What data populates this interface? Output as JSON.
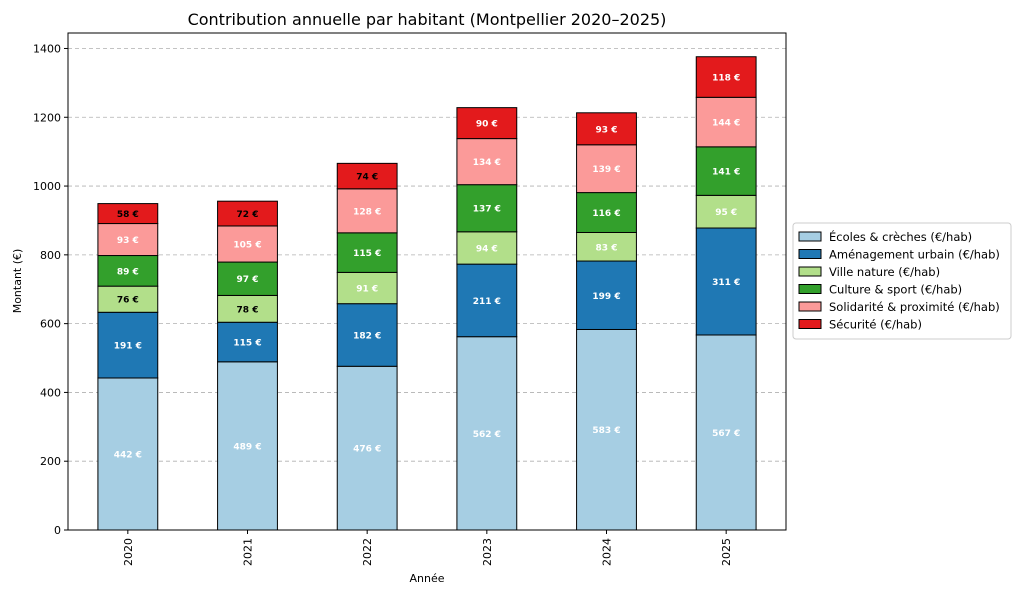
{
  "chart_data": {
    "type": "bar",
    "stacked": true,
    "title": "Contribution annuelle par habitant (Montpellier 2020–2025)",
    "xlabel": "Année",
    "ylabel": "Montant (€)",
    "categories": [
      "2020",
      "2021",
      "2022",
      "2023",
      "2024",
      "2025"
    ],
    "ylim": [
      0,
      1445
    ],
    "yticks": [
      0,
      200,
      400,
      600,
      800,
      1000,
      1200,
      1400
    ],
    "grid": "y-dashed",
    "legend_position": "right",
    "value_suffix": " €",
    "series": [
      {
        "name": "Écoles & crèches (€/hab)",
        "color": "#a6cee3",
        "label_color": "#ffffff",
        "values": [
          442,
          489,
          476,
          562,
          583,
          567
        ]
      },
      {
        "name": "Aménagement urbain (€/hab)",
        "color": "#1f78b4",
        "label_color": "#ffffff",
        "values": [
          191,
          115,
          182,
          211,
          199,
          311
        ]
      },
      {
        "name": "Ville nature (€/hab)",
        "color": "#b2df8a",
        "label_color_by_category": [
          "#000000",
          "#000000",
          "#ffffff",
          "#ffffff",
          "#ffffff",
          "#ffffff"
        ],
        "values": [
          76,
          78,
          91,
          94,
          83,
          95
        ]
      },
      {
        "name": "Culture & sport (€/hab)",
        "color": "#33a02c",
        "label_color": "#ffffff",
        "values": [
          89,
          97,
          115,
          137,
          116,
          141
        ]
      },
      {
        "name": "Solidarité & proximité (€/hab)",
        "color": "#fb9a99",
        "label_color": "#ffffff",
        "values": [
          93,
          105,
          128,
          134,
          139,
          144
        ]
      },
      {
        "name": "Sécurité (€/hab)",
        "color": "#e31a1c",
        "label_color_by_category": [
          "#000000",
          "#000000",
          "#000000",
          "#ffffff",
          "#ffffff",
          "#ffffff"
        ],
        "values": [
          58,
          72,
          74,
          90,
          93,
          118
        ]
      }
    ]
  }
}
